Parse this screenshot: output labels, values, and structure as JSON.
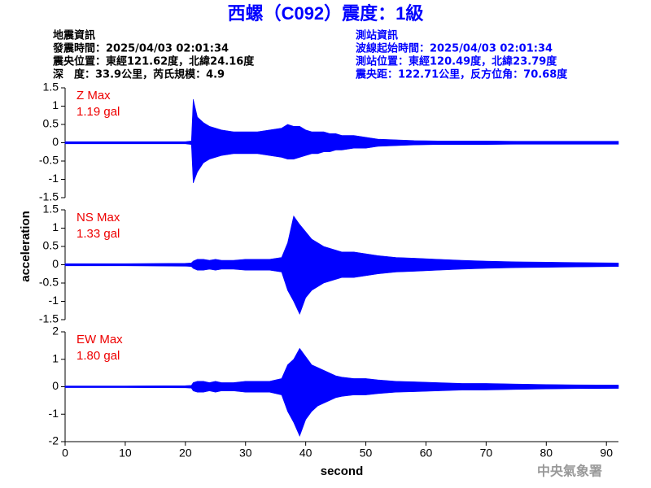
{
  "header": {
    "title": "西螺（C092）震度：1級",
    "left": [
      "地震資訊",
      "發震時間：2025/04/03 02:01:34",
      "震央位置：東經121.62度，北緯24.16度",
      "深　度：33.9公里，芮氏規模：4.9"
    ],
    "right": [
      "測站資訊",
      "波線起始時間：2025/04/03 02:01:34",
      "測站位置：東經120.49度，北緯23.79度",
      "震央距：122.71公里，反方位角：70.68度"
    ],
    "ylabel": "acceleration",
    "footer": "中央氣象署"
  },
  "chart_data": [
    {
      "type": "area",
      "label": "Z Max",
      "max_label": "1.19 gal",
      "xlim": [
        0,
        92
      ],
      "ylim": [
        -1.5,
        1.5
      ],
      "yticks": [
        1.5,
        1,
        0.5,
        0,
        -0.5,
        -1,
        -1.5
      ],
      "x": [
        0,
        10,
        20,
        21,
        21.3,
        22,
        23,
        24,
        25,
        26,
        28,
        30,
        32,
        34,
        36,
        37,
        38,
        39,
        40,
        41,
        42,
        43,
        44,
        45,
        46,
        48,
        50,
        52,
        55,
        58,
        62,
        66,
        70,
        75,
        80,
        85,
        92
      ],
      "series": [
        {
          "color": "#0000ff",
          "values": [
            0.03,
            0.03,
            0.03,
            0.05,
            1.19,
            0.7,
            0.55,
            0.45,
            0.4,
            0.35,
            0.3,
            0.3,
            0.3,
            0.35,
            0.4,
            0.5,
            0.45,
            0.45,
            0.35,
            0.3,
            0.3,
            0.3,
            0.25,
            0.25,
            0.2,
            0.2,
            0.15,
            0.1,
            0.08,
            0.06,
            0.05,
            0.05,
            0.05,
            0.04,
            0.04,
            0.04,
            0.04
          ]
        },
        {
          "color": "#0000ff",
          "values": [
            -0.03,
            -0.03,
            -0.03,
            -0.05,
            -1.1,
            -0.8,
            -0.55,
            -0.45,
            -0.4,
            -0.35,
            -0.3,
            -0.3,
            -0.3,
            -0.35,
            -0.4,
            -0.45,
            -0.45,
            -0.4,
            -0.35,
            -0.3,
            -0.3,
            -0.25,
            -0.25,
            -0.2,
            -0.2,
            -0.15,
            -0.15,
            -0.1,
            -0.08,
            -0.06,
            -0.05,
            -0.05,
            -0.05,
            -0.04,
            -0.04,
            -0.04,
            -0.04
          ]
        }
      ]
    },
    {
      "type": "area",
      "label": "NS Max",
      "max_label": "1.33 gal",
      "xlim": [
        0,
        92
      ],
      "ylim": [
        -1.5,
        1.5
      ],
      "yticks": [
        1.5,
        1,
        0.5,
        0,
        -0.5,
        -1,
        -1.5
      ],
      "x": [
        0,
        10,
        20,
        21,
        21.3,
        22,
        23,
        24,
        25,
        26,
        28,
        30,
        32,
        34,
        36,
        37,
        38,
        39,
        40,
        41,
        42,
        43,
        44,
        45,
        46,
        48,
        50,
        52,
        55,
        58,
        62,
        66,
        70,
        75,
        80,
        85,
        92
      ],
      "series": [
        {
          "color": "#0000ff",
          "values": [
            0.03,
            0.03,
            0.04,
            0.05,
            0.1,
            0.15,
            0.15,
            0.12,
            0.15,
            0.12,
            0.12,
            0.15,
            0.15,
            0.15,
            0.2,
            0.6,
            1.33,
            1.1,
            0.9,
            0.7,
            0.6,
            0.5,
            0.45,
            0.4,
            0.35,
            0.35,
            0.3,
            0.25,
            0.2,
            0.18,
            0.15,
            0.12,
            0.1,
            0.08,
            0.07,
            0.06,
            0.05
          ]
        },
        {
          "color": "#0000ff",
          "values": [
            -0.03,
            -0.03,
            -0.04,
            -0.05,
            -0.1,
            -0.15,
            -0.15,
            -0.12,
            -0.15,
            -0.12,
            -0.12,
            -0.15,
            -0.15,
            -0.15,
            -0.2,
            -0.7,
            -1.0,
            -1.35,
            -0.9,
            -0.7,
            -0.6,
            -0.5,
            -0.45,
            -0.4,
            -0.35,
            -0.35,
            -0.3,
            -0.25,
            -0.2,
            -0.18,
            -0.15,
            -0.12,
            -0.1,
            -0.08,
            -0.07,
            -0.06,
            -0.05
          ]
        }
      ]
    },
    {
      "type": "area",
      "label": "EW Max",
      "max_label": "1.80 gal",
      "xlim": [
        0,
        92
      ],
      "ylim": [
        -2,
        2
      ],
      "yticks": [
        2,
        1,
        0,
        -1,
        -2
      ],
      "xlabel": "second",
      "xticks": [
        0,
        10,
        20,
        30,
        40,
        50,
        60,
        70,
        80,
        90
      ],
      "x": [
        0,
        10,
        20,
        21,
        21.3,
        22,
        23,
        24,
        25,
        26,
        28,
        30,
        32,
        34,
        36,
        37,
        38,
        39,
        40,
        41,
        42,
        43,
        44,
        45,
        46,
        48,
        50,
        52,
        55,
        58,
        62,
        66,
        70,
        75,
        80,
        85,
        92
      ],
      "series": [
        {
          "color": "#0000ff",
          "values": [
            0.03,
            0.03,
            0.04,
            0.05,
            0.15,
            0.2,
            0.2,
            0.15,
            0.2,
            0.15,
            0.15,
            0.2,
            0.2,
            0.2,
            0.3,
            0.8,
            1.0,
            1.4,
            1.1,
            0.8,
            0.7,
            0.6,
            0.5,
            0.4,
            0.35,
            0.3,
            0.3,
            0.25,
            0.2,
            0.18,
            0.15,
            0.12,
            0.12,
            0.1,
            0.08,
            0.07,
            0.06
          ]
        },
        {
          "color": "#0000ff",
          "values": [
            -0.03,
            -0.03,
            -0.04,
            -0.05,
            -0.15,
            -0.2,
            -0.2,
            -0.15,
            -0.2,
            -0.15,
            -0.15,
            -0.2,
            -0.2,
            -0.2,
            -0.3,
            -0.9,
            -1.3,
            -1.8,
            -1.2,
            -0.9,
            -0.7,
            -0.6,
            -0.5,
            -0.4,
            -0.35,
            -0.3,
            -0.3,
            -0.25,
            -0.2,
            -0.18,
            -0.15,
            -0.12,
            -0.12,
            -0.1,
            -0.08,
            -0.07,
            -0.06
          ]
        }
      ]
    }
  ]
}
